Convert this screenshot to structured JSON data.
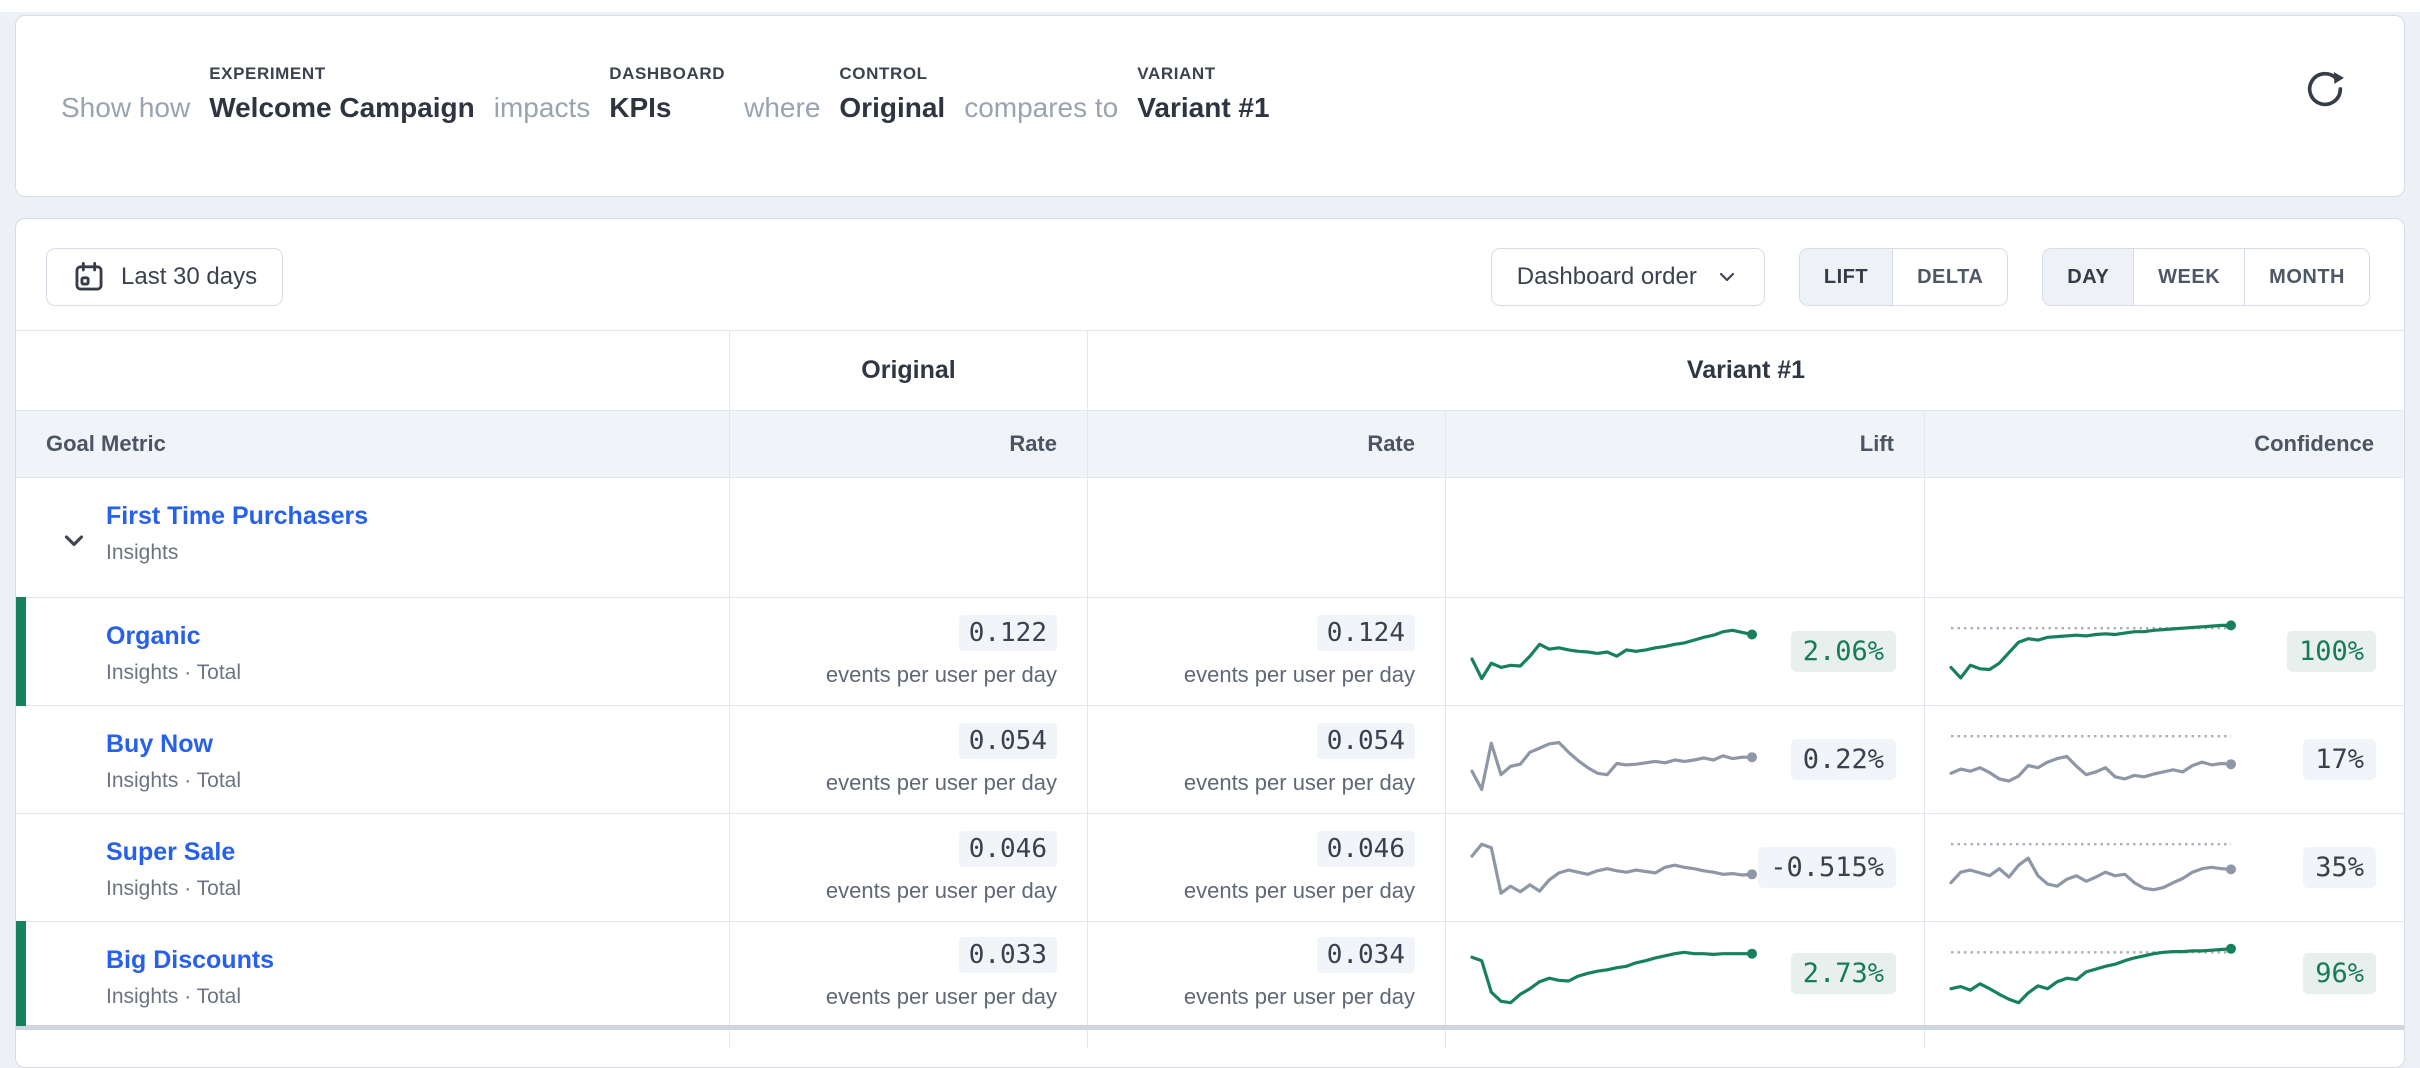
{
  "colors": {
    "positive": "#17805c",
    "neutral_line": "#8d97a5",
    "threshold_line": "#a8b0ba",
    "link_blue": "#2760ea"
  },
  "header": {
    "prefix": "Show how",
    "experiment_label": "EXPERIMENT",
    "experiment_value": "Welcome Campaign",
    "impacts": "impacts",
    "dashboard_label": "DASHBOARD",
    "dashboard_value": "KPIs",
    "where": "where",
    "control_label": "CONTROL",
    "control_value": "Original",
    "compares": "compares to",
    "variant_label": "VARIANT",
    "variant_value": "Variant #1"
  },
  "toolbar": {
    "date_range": "Last 30 days",
    "order_dropdown": "Dashboard order",
    "mode": {
      "options": [
        "LIFT",
        "DELTA"
      ],
      "selected": "LIFT"
    },
    "granularity": {
      "options": [
        "DAY",
        "WEEK",
        "MONTH"
      ],
      "selected": "DAY"
    }
  },
  "table": {
    "control_header": "Original",
    "variant_header": "Variant #1",
    "columns": {
      "goal_metric": "Goal Metric",
      "control_rate": "Rate",
      "variant_rate": "Rate",
      "lift": "Lift",
      "confidence": "Confidence"
    },
    "rate_unit": "events per user per day",
    "group_row": {
      "name": "First Time Purchasers",
      "subtitle": "Insights"
    },
    "rows": [
      {
        "name": "Organic",
        "subtitle": "Insights · Total",
        "original_rate": "0.122",
        "variant_rate": "0.124",
        "lift": "2.06%",
        "confidence": "100%",
        "positive": true,
        "conf_threshold": 84,
        "lift_spark": [
          40,
          12,
          34,
          28,
          31,
          30,
          44,
          61,
          54,
          56,
          53,
          51,
          50,
          48,
          50,
          44,
          53,
          51,
          53,
          56,
          58,
          61,
          63,
          67,
          71,
          74,
          79,
          81,
          78,
          75
        ],
        "conf_spark": [
          28,
          13,
          31,
          26,
          25,
          34,
          49,
          64,
          69,
          67,
          71,
          72,
          73,
          74,
          73,
          75,
          76,
          75,
          77,
          79,
          79,
          81,
          82,
          83,
          84,
          85,
          86,
          87,
          88,
          88
        ]
      },
      {
        "name": "Buy Now",
        "subtitle": "Insights · Total",
        "original_rate": "0.054",
        "variant_rate": "0.054",
        "lift": "0.22%",
        "confidence": "17%",
        "positive": false,
        "conf_threshold": 84,
        "lift_spark": [
          34,
          8,
          74,
          29,
          41,
          44,
          61,
          67,
          73,
          75,
          61,
          49,
          39,
          31,
          29,
          45,
          43,
          44,
          46,
          48,
          46,
          50,
          48,
          50,
          53,
          50,
          56,
          52,
          54,
          54
        ],
        "conf_spark": [
          31,
          37,
          34,
          39,
          32,
          23,
          20,
          27,
          42,
          39,
          47,
          52,
          55,
          41,
          29,
          33,
          39,
          26,
          23,
          28,
          26,
          30,
          33,
          36,
          33,
          42,
          47,
          43,
          45,
          44
        ]
      },
      {
        "name": "Super Sale",
        "subtitle": "Insights · Total",
        "original_rate": "0.046",
        "variant_rate": "0.046",
        "lift": "-0.515%",
        "confidence": "35%",
        "positive": false,
        "conf_threshold": 84,
        "lift_spark": [
          67,
          84,
          79,
          14,
          24,
          16,
          26,
          17,
          33,
          43,
          47,
          44,
          41,
          46,
          49,
          46,
          44,
          47,
          45,
          43,
          51,
          54,
          51,
          49,
          46,
          44,
          41,
          42,
          40,
          41
        ],
        "conf_spark": [
          29,
          44,
          47,
          43,
          39,
          49,
          37,
          54,
          64,
          39,
          27,
          24,
          34,
          39,
          31,
          37,
          44,
          39,
          41,
          29,
          21,
          19,
          22,
          29,
          35,
          44,
          49,
          51,
          49,
          48
        ]
      },
      {
        "name": "Big Discounts",
        "subtitle": "Insights · Total",
        "original_rate": "0.033",
        "variant_rate": "0.034",
        "lift": "2.73%",
        "confidence": "96%",
        "positive": true,
        "conf_threshold": 81,
        "lift_spark": [
          74,
          69,
          24,
          11,
          9,
          21,
          29,
          39,
          44,
          41,
          40,
          47,
          51,
          54,
          56,
          59,
          61,
          66,
          69,
          73,
          76,
          79,
          81,
          79,
          79,
          78,
          79,
          79,
          79,
          79
        ],
        "conf_spark": [
          29,
          32,
          27,
          36,
          29,
          21,
          14,
          9,
          23,
          33,
          29,
          39,
          44,
          42,
          53,
          57,
          61,
          64,
          69,
          73,
          76,
          79,
          81,
          82,
          82,
          83,
          83,
          84,
          85,
          86
        ]
      }
    ]
  }
}
